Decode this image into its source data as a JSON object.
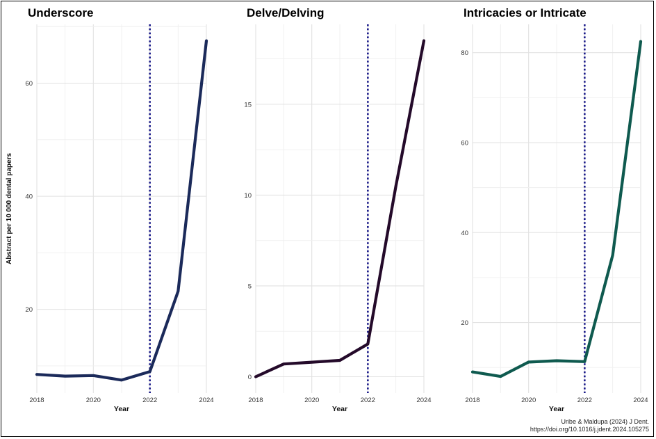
{
  "chart_data": [
    {
      "type": "line",
      "title": "Underscore",
      "xlabel": "Year",
      "ylabel": "Abstract per 10 000 dental papers",
      "x": [
        2018,
        2019,
        2020,
        2021,
        2022,
        2023,
        2024
      ],
      "series": [
        {
          "values": [
            8.5,
            8.2,
            8.3,
            7.5,
            9.0,
            23.2,
            67.5
          ]
        }
      ],
      "xticks": [
        2018,
        2020,
        2022,
        2024
      ],
      "yticks": [
        20,
        40,
        60
      ],
      "xlim": [
        2018,
        2024
      ],
      "ylim": [
        5.2,
        70.4
      ],
      "vline": 2022,
      "color": "#1b2a5a",
      "grid": true
    },
    {
      "type": "line",
      "title": "Delve/Delving",
      "xlabel": "Year",
      "ylabel": "",
      "x": [
        2018,
        2019,
        2020,
        2021,
        2022,
        2023,
        2024
      ],
      "series": [
        {
          "values": [
            0.0,
            0.7,
            0.8,
            0.9,
            1.8,
            10.5,
            18.5
          ]
        }
      ],
      "xticks": [
        2018,
        2020,
        2022,
        2024
      ],
      "yticks": [
        0,
        5,
        10,
        15
      ],
      "xlim": [
        2018,
        2024
      ],
      "ylim": [
        -0.9,
        19.4
      ],
      "vline": 2022,
      "color": "#240a2a",
      "grid": true
    },
    {
      "type": "line",
      "title": "Intricacies or Intricate",
      "xlabel": "Year",
      "ylabel": "",
      "x": [
        2018,
        2019,
        2020,
        2021,
        2022,
        2023,
        2024
      ],
      "series": [
        {
          "values": [
            9.0,
            8.0,
            11.2,
            11.5,
            11.3,
            35.0,
            82.5
          ]
        }
      ],
      "xticks": [
        2018,
        2020,
        2022,
        2024
      ],
      "yticks": [
        20,
        40,
        60,
        80
      ],
      "xlim": [
        2018,
        2024
      ],
      "ylim": [
        4.3,
        86.3
      ],
      "vline": 2022,
      "color": "#0f5a4f",
      "grid": true
    }
  ],
  "vline_color": "#1a1a8a",
  "credit": {
    "line1": "Uribe & Maldupa (2024) J Dent.",
    "line2": "https://doi.org/10.1016/j.jdent.2024.105275"
  }
}
